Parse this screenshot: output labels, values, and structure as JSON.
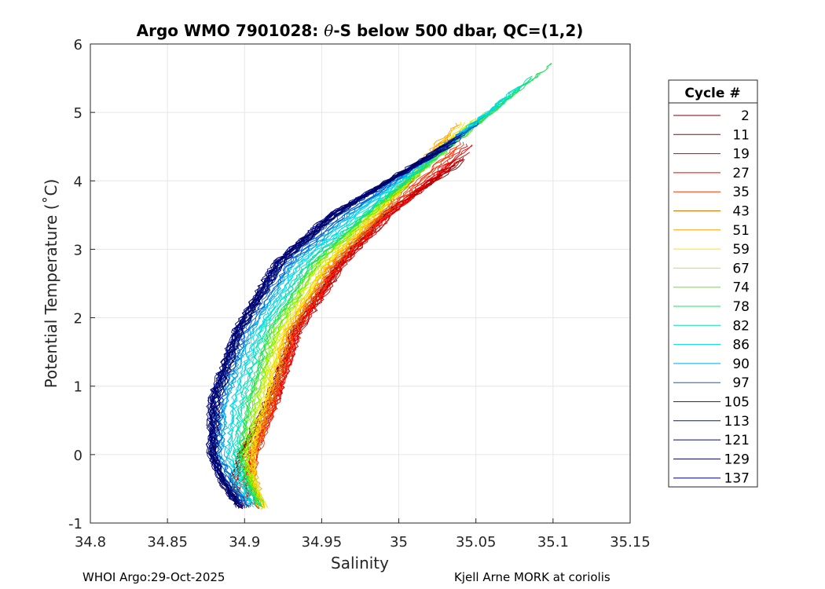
{
  "chart_data": {
    "type": "line",
    "title_parts": {
      "prefix": "Argo WMO 7901028: ",
      "theta": "θ",
      "suffix": "-S below 500 dbar,  QC=(1,2)"
    },
    "xlabel": "Salinity",
    "ylabel": "Potential Temperature (˚C)",
    "xlim": [
      34.8,
      35.15
    ],
    "ylim": [
      -1,
      6
    ],
    "x_ticks": [
      34.8,
      34.85,
      34.9,
      34.95,
      35,
      35.05,
      35.1,
      35.15
    ],
    "x_tick_labels": [
      "34.8",
      "34.85",
      "34.9",
      "34.95",
      "35",
      "35.05",
      "35.1",
      "35.15"
    ],
    "y_ticks": [
      -1,
      0,
      1,
      2,
      3,
      4,
      5,
      6
    ],
    "y_tick_labels": [
      "-1",
      "0",
      "1",
      "2",
      "3",
      "4",
      "5",
      "6"
    ],
    "grid": true,
    "legend_title": "Cycle #",
    "legend_position": "right",
    "series": [
      {
        "name": "2",
        "color": "#7a0000",
        "s": [
          34.897,
          34.892,
          34.897,
          34.915,
          34.932,
          34.962,
          34.99,
          35.046
        ],
        "t": [
          -0.8,
          -0.4,
          0.0,
          0.8,
          1.8,
          2.8,
          3.5,
          4.35
        ]
      },
      {
        "name": "11",
        "color": "#a00000",
        "s": [
          34.9,
          34.895,
          34.9,
          34.917,
          34.933,
          34.963,
          34.992,
          35.045
        ],
        "t": [
          -0.8,
          -0.4,
          0.0,
          0.8,
          1.8,
          2.8,
          3.5,
          4.4
        ]
      },
      {
        "name": "19",
        "color": "#d00000",
        "s": [
          34.904,
          34.898,
          34.903,
          34.92,
          34.935,
          34.964,
          34.994,
          35.046
        ],
        "t": [
          -0.8,
          -0.4,
          0.0,
          0.8,
          1.8,
          2.8,
          3.5,
          4.45
        ]
      },
      {
        "name": "27",
        "color": "#f00000",
        "s": [
          34.908,
          34.902,
          34.906,
          34.921,
          34.934,
          34.962,
          34.993,
          35.05
        ],
        "t": [
          -0.8,
          -0.4,
          0.0,
          0.8,
          1.8,
          2.8,
          3.5,
          4.6
        ]
      },
      {
        "name": "35",
        "color": "#ff3000",
        "s": [
          34.91,
          34.904,
          34.907,
          34.92,
          34.932,
          34.96,
          34.99,
          35.048
        ],
        "t": [
          -0.8,
          -0.4,
          0.0,
          0.8,
          1.8,
          2.8,
          3.5,
          4.7
        ]
      },
      {
        "name": "43",
        "color": "#e07000",
        "s": [
          34.911,
          34.905,
          34.906,
          34.918,
          34.93,
          34.958,
          34.988,
          35.04
        ],
        "t": [
          -0.8,
          -0.4,
          0.0,
          0.8,
          1.8,
          2.8,
          3.5,
          4.8
        ]
      },
      {
        "name": "51",
        "color": "#ffa000",
        "s": [
          34.912,
          34.906,
          34.905,
          34.915,
          34.927,
          34.955,
          34.985,
          35.04
        ],
        "t": [
          -0.8,
          -0.4,
          0.0,
          0.8,
          1.8,
          2.8,
          3.5,
          4.9
        ]
      },
      {
        "name": "59",
        "color": "#ffe000",
        "s": [
          34.912,
          34.906,
          34.904,
          34.913,
          34.925,
          34.953,
          34.984,
          35.045
        ],
        "t": [
          -0.8,
          -0.4,
          0.0,
          0.8,
          1.8,
          2.8,
          3.5,
          4.9
        ]
      },
      {
        "name": "67",
        "color": "#c0f000",
        "s": [
          34.912,
          34.905,
          34.902,
          34.91,
          34.922,
          34.95,
          34.982,
          35.06
        ],
        "t": [
          -0.8,
          -0.4,
          0.0,
          0.8,
          1.8,
          2.8,
          3.5,
          5.1
        ]
      },
      {
        "name": "74",
        "color": "#60f000",
        "s": [
          34.911,
          34.903,
          34.899,
          34.906,
          34.919,
          34.947,
          34.98,
          35.08
        ],
        "t": [
          -0.8,
          -0.4,
          0.0,
          0.8,
          1.8,
          2.8,
          3.5,
          5.4
        ]
      },
      {
        "name": "78",
        "color": "#20e060",
        "s": [
          34.91,
          34.901,
          34.896,
          34.902,
          34.915,
          34.944,
          34.978,
          35.1
        ],
        "t": [
          -0.8,
          -0.4,
          0.0,
          0.8,
          1.8,
          2.8,
          3.5,
          5.75
        ]
      },
      {
        "name": "82",
        "color": "#00e0b0",
        "s": [
          34.908,
          34.899,
          34.893,
          34.898,
          34.911,
          34.94,
          34.976,
          35.09
        ],
        "t": [
          -0.8,
          -0.4,
          0.0,
          0.8,
          1.8,
          2.8,
          3.5,
          5.6
        ]
      },
      {
        "name": "86",
        "color": "#00d8e8",
        "s": [
          34.906,
          34.896,
          34.889,
          34.893,
          34.908,
          34.936,
          34.972,
          35.08
        ],
        "t": [
          -0.8,
          -0.4,
          0.0,
          0.8,
          1.8,
          2.8,
          3.5,
          5.4
        ]
      },
      {
        "name": "90",
        "color": "#00a8e8",
        "s": [
          34.904,
          34.893,
          34.885,
          34.888,
          34.904,
          34.932,
          34.968,
          35.06
        ],
        "t": [
          -0.8,
          -0.4,
          0.0,
          0.8,
          1.8,
          2.8,
          3.5,
          5.0
        ]
      },
      {
        "name": "97",
        "color": "#0060d0",
        "s": [
          34.902,
          34.89,
          34.882,
          34.884,
          34.9,
          34.928,
          34.964,
          35.055
        ],
        "t": [
          -0.8,
          -0.4,
          0.0,
          0.8,
          1.8,
          2.8,
          3.5,
          4.9
        ]
      },
      {
        "name": "105",
        "color": "#0030b0",
        "s": [
          34.9,
          34.888,
          34.88,
          34.881,
          34.897,
          34.925,
          34.96,
          35.05
        ],
        "t": [
          -0.8,
          -0.4,
          0.0,
          0.8,
          1.8,
          2.8,
          3.5,
          4.8
        ]
      },
      {
        "name": "113",
        "color": "#001890",
        "s": [
          34.899,
          34.887,
          34.879,
          34.879,
          34.895,
          34.922,
          34.957,
          35.045
        ],
        "t": [
          -0.8,
          -0.4,
          0.0,
          0.8,
          1.8,
          2.8,
          3.5,
          4.7
        ]
      },
      {
        "name": "121",
        "color": "#000880",
        "s": [
          34.898,
          34.886,
          34.878,
          34.878,
          34.894,
          34.92,
          34.955,
          35.04
        ],
        "t": [
          -0.8,
          -0.4,
          0.0,
          0.8,
          1.8,
          2.8,
          3.5,
          4.6
        ]
      },
      {
        "name": "129",
        "color": "#000070",
        "s": [
          34.898,
          34.886,
          34.879,
          34.88,
          34.895,
          34.921,
          34.956,
          35.04
        ],
        "t": [
          -0.8,
          -0.4,
          0.0,
          0.8,
          1.8,
          2.8,
          3.5,
          4.6
        ]
      },
      {
        "name": "137",
        "color": "#000060",
        "s": [
          34.897,
          34.885,
          34.88,
          34.882,
          34.897,
          34.923,
          34.958,
          35.042
        ],
        "t": [
          -0.8,
          -0.4,
          0.0,
          0.8,
          1.8,
          2.8,
          3.5,
          4.7
        ]
      }
    ]
  },
  "footer": {
    "left": "WHOI Argo:29-Oct-2025",
    "right": "Kjell Arne MORK at coriolis"
  }
}
